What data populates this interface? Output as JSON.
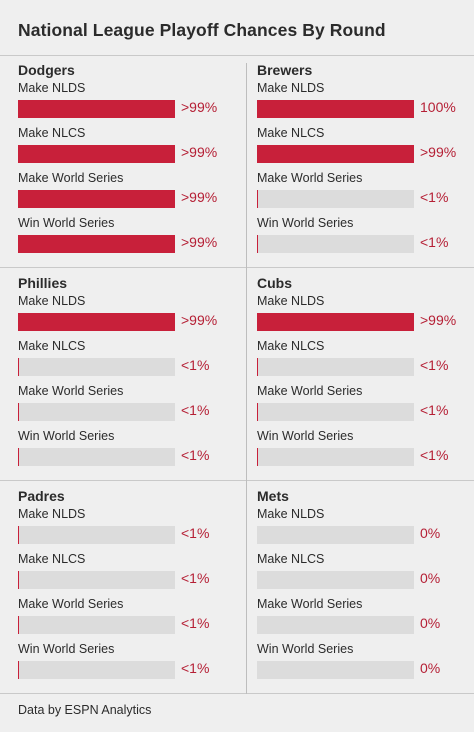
{
  "title": "National League Playoff Chances By Round",
  "footer": "Data by ESPN Analytics",
  "colors": {
    "fill": "#c8203a",
    "track": "#dcdcdc",
    "value_text": "#b51f35"
  },
  "chart_data": {
    "type": "bar",
    "title": "National League Playoff Chances By Round",
    "categories": [
      "Make NLDS",
      "Make NLCS",
      "Make World Series",
      "Win World Series"
    ],
    "unit": "%",
    "xlim": [
      0,
      100
    ],
    "teams": [
      {
        "name": "Dodgers",
        "values": [
          99.5,
          99.5,
          99.5,
          99.5
        ],
        "labels": [
          ">99%",
          ">99%",
          ">99%",
          ">99%"
        ]
      },
      {
        "name": "Brewers",
        "values": [
          100,
          99.5,
          0.5,
          0.5
        ],
        "labels": [
          "100%",
          ">99%",
          "<1%",
          "<1%"
        ]
      },
      {
        "name": "Phillies",
        "values": [
          99.5,
          0.5,
          0.5,
          0.5
        ],
        "labels": [
          ">99%",
          "<1%",
          "<1%",
          "<1%"
        ]
      },
      {
        "name": "Cubs",
        "values": [
          99.5,
          0.5,
          0.5,
          0.5
        ],
        "labels": [
          ">99%",
          "<1%",
          "<1%",
          "<1%"
        ]
      },
      {
        "name": "Padres",
        "values": [
          0.5,
          0.5,
          0.5,
          0.5
        ],
        "labels": [
          "<1%",
          "<1%",
          "<1%",
          "<1%"
        ]
      },
      {
        "name": "Mets",
        "values": [
          0,
          0,
          0,
          0
        ],
        "labels": [
          "0%",
          "0%",
          "0%",
          "0%"
        ]
      }
    ]
  }
}
